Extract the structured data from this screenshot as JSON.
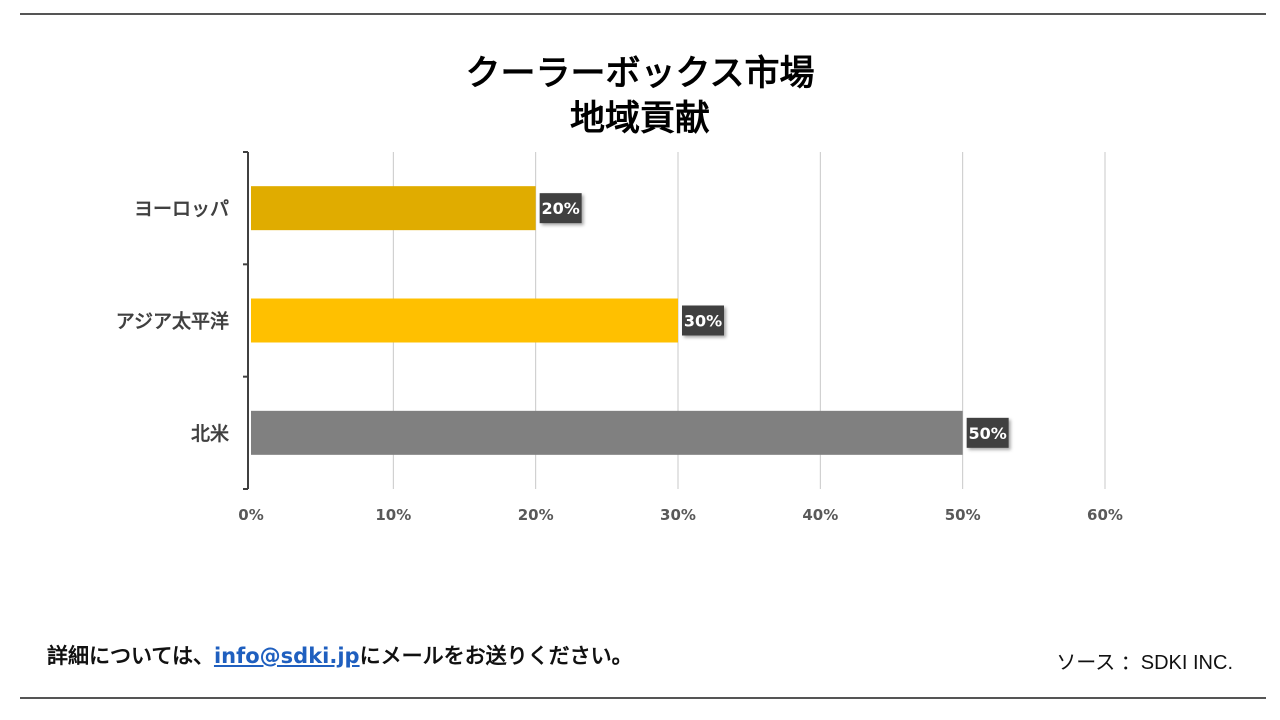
{
  "chart_data": {
    "type": "bar",
    "orientation": "horizontal",
    "title_line1": "クーラーボックス市場",
    "title_line2": "地域貢献",
    "categories": [
      "ヨーロッパ",
      "アジア太平洋",
      "北米"
    ],
    "values": [
      20,
      30,
      50
    ],
    "value_labels": [
      "20%",
      "30%",
      "50%"
    ],
    "bar_colors": [
      "#e0ac00",
      "#ffc000",
      "#808080"
    ],
    "xlim": [
      0,
      60
    ],
    "x_ticks": [
      0,
      10,
      20,
      30,
      40,
      50,
      60
    ],
    "x_tick_labels": [
      "0%",
      "10%",
      "20%",
      "30%",
      "40%",
      "50%",
      "60%"
    ],
    "grid": true,
    "legend": "none"
  },
  "footer": {
    "contact_prefix": "詳細については、",
    "contact_email": "info@sdki.jp",
    "contact_suffix": "にメールをお送りください。",
    "source": "ソース ：SDKI INC."
  }
}
